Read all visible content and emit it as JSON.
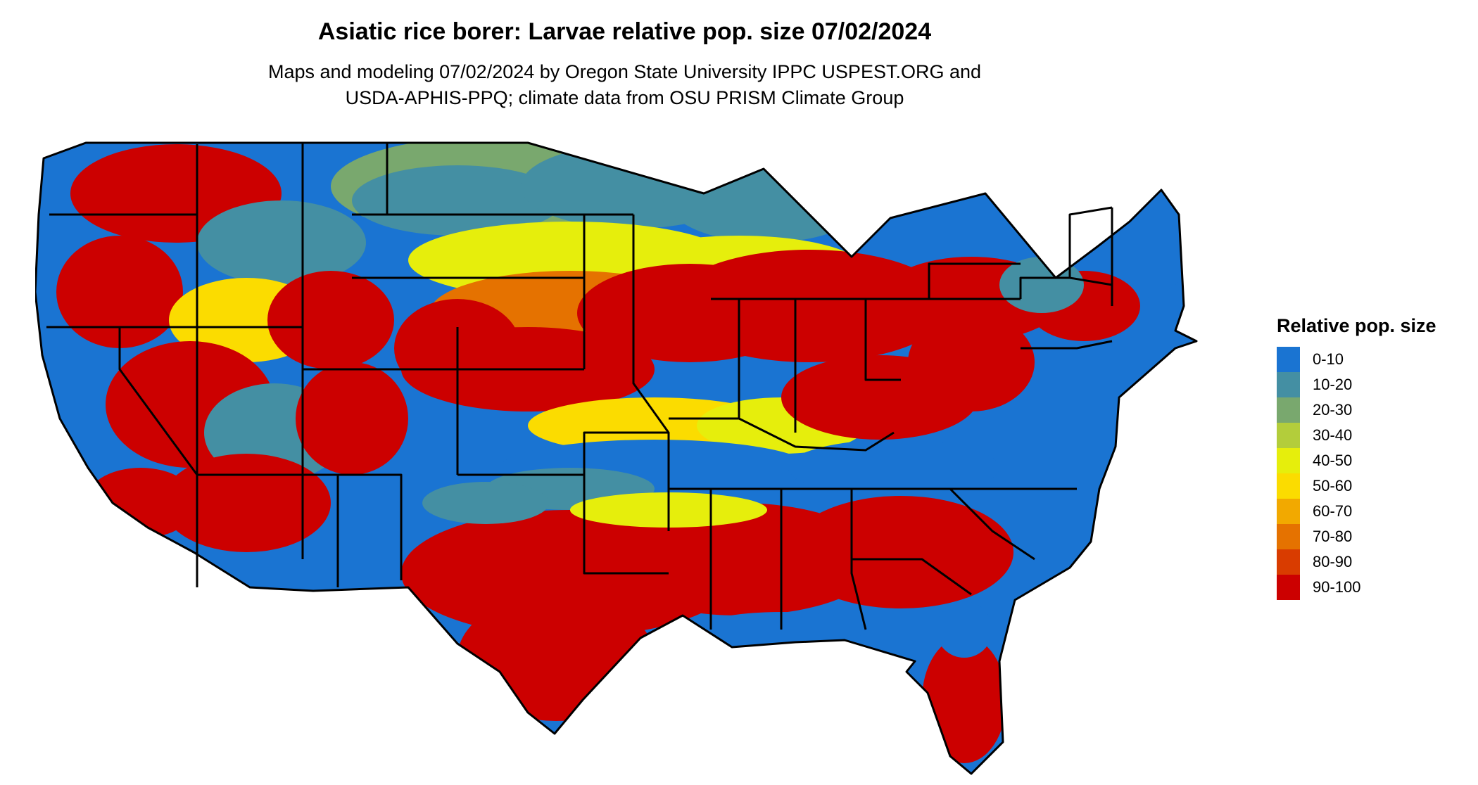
{
  "title": "Asiatic rice borer: Larvae relative pop. size 07/02/2024",
  "subtitle": {
    "line1": "Maps and modeling 07/02/2024 by Oregon State University IPPC USPEST.ORG and",
    "line2": "USDA-APHIS-PPQ; climate data from OSU PRISM Climate Group"
  },
  "legend": {
    "title": "Relative pop. size",
    "items": [
      {
        "label": "0-10",
        "color": "#1a74d2"
      },
      {
        "label": "10-20",
        "color": "#448fa3"
      },
      {
        "label": "20-30",
        "color": "#79a86e"
      },
      {
        "label": "30-40",
        "color": "#b3cd3b"
      },
      {
        "label": "40-50",
        "color": "#e6ee0c"
      },
      {
        "label": "50-60",
        "color": "#fbdc00"
      },
      {
        "label": "60-70",
        "color": "#f2a900"
      },
      {
        "label": "70-80",
        "color": "#e57200"
      },
      {
        "label": "80-90",
        "color": "#d93c00"
      },
      {
        "label": "90-100",
        "color": "#cc0000"
      }
    ]
  },
  "map": {
    "region": "Contiguous United States",
    "boundary_color": "#000000"
  }
}
